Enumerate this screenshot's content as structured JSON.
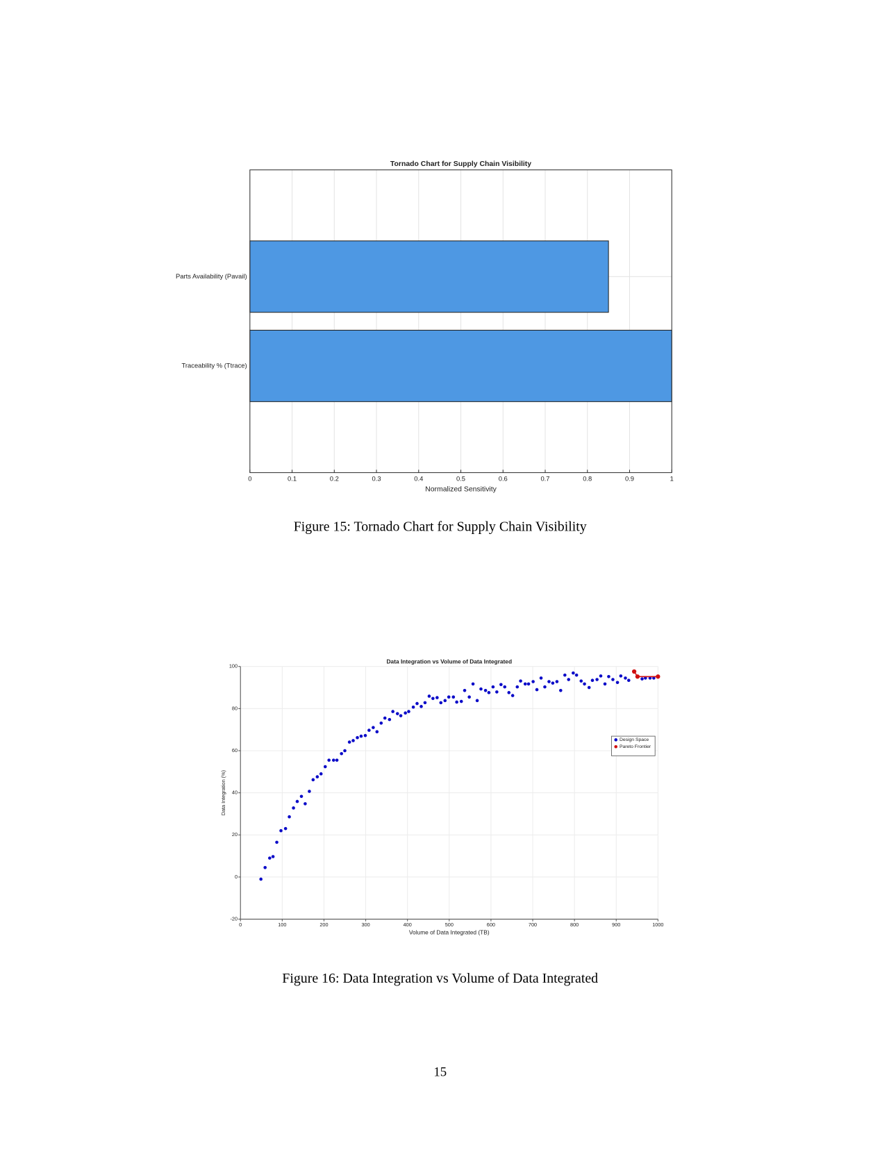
{
  "chart_data": [
    {
      "type": "hbar",
      "title": "Tornado Chart for Supply Chain Visibility",
      "categories": [
        "Parts Availability (Pavail)",
        "Traceability % (Ttrace)"
      ],
      "values": [
        0.85,
        1.0
      ],
      "color": "#4e98e3",
      "xlabel": "Normalized Sensitivity",
      "xlim": [
        0,
        1
      ],
      "xticks": [
        0,
        0.1,
        0.2,
        0.3,
        0.4,
        0.5,
        0.6,
        0.7,
        0.8,
        0.9,
        1
      ],
      "grid": true
    },
    {
      "type": "scatter",
      "title": "Data Integration vs Volume of Data Integrated",
      "xlabel": "Volume of Data Integrated (TB)",
      "ylabel": "Data Integration (%)",
      "xlim": [
        0,
        1000
      ],
      "xticks": [
        0,
        100,
        200,
        300,
        400,
        500,
        600,
        700,
        800,
        900,
        1000
      ],
      "ylim": [
        -20,
        100
      ],
      "yticks": [
        -20,
        0,
        20,
        40,
        60,
        80,
        100
      ],
      "grid": true,
      "legend": "east",
      "series": [
        {
          "name": "Design Space",
          "color": "#0a0ac8",
          "x": [
            49,
            59,
            70,
            78,
            87,
            97,
            108,
            117,
            127,
            136,
            146,
            155,
            165,
            174,
            184,
            193,
            203,
            212,
            223,
            231,
            242,
            250,
            261,
            270,
            280,
            289,
            299,
            308,
            318,
            327,
            337,
            346,
            357,
            365,
            376,
            384,
            395,
            403,
            414,
            423,
            433,
            442,
            452,
            461,
            471,
            480,
            490,
            499,
            510,
            518,
            529,
            537,
            548,
            557,
            567,
            576,
            587,
            595,
            605,
            614,
            624,
            633,
            643,
            652,
            663,
            671,
            682,
            690,
            701,
            710,
            720,
            729,
            739,
            748,
            758,
            767,
            777,
            786,
            797,
            805,
            816,
            824,
            835,
            843,
            854,
            863,
            873,
            882,
            892,
            903,
            911,
            922,
            930,
            962,
            970,
            981,
            990
          ],
          "values": [
            -1,
            4.5,
            9,
            9.7,
            16.5,
            22,
            23,
            28.6,
            32.8,
            35.9,
            38.3,
            34.8,
            40.7,
            46.2,
            47.6,
            49,
            52.4,
            55.5,
            55.5,
            55.5,
            58.6,
            60,
            64.1,
            64.8,
            66.2,
            66.9,
            67.2,
            69.7,
            71,
            69,
            73.1,
            75.5,
            74.8,
            78.6,
            77.6,
            76.6,
            77.9,
            78.6,
            80.7,
            82.4,
            81,
            82.8,
            85.9,
            84.8,
            85.2,
            82.8,
            83.8,
            85.5,
            85.5,
            83.1,
            83.4,
            88.6,
            85.5,
            91.7,
            83.8,
            89.3,
            88.6,
            87.6,
            90.3,
            87.9,
            91.4,
            90.3,
            87.6,
            86.2,
            90.3,
            93.1,
            91.7,
            91.7,
            92.8,
            89,
            94.5,
            90.3,
            92.8,
            92.1,
            92.8,
            88.6,
            95.9,
            93.8,
            96.9,
            95.9,
            93.1,
            91.7,
            90,
            93.4,
            93.8,
            95.5,
            91.7,
            95.2,
            93.8,
            92.4,
            95.5,
            94.5,
            93.4,
            94.1,
            94.5,
            94.5,
            94.5
          ]
        },
        {
          "name": "Pareto Frontier",
          "color": "#d01010",
          "line": true,
          "x": [
            943,
            951,
            1000
          ],
          "values": [
            97.6,
            95.2,
            95.2
          ]
        }
      ]
    }
  ],
  "captions": [
    "Figure 15: Tornado Chart for Supply Chain Visibility",
    "Figure 16: Data Integration vs Volume of Data Integrated"
  ],
  "page_number": "15"
}
